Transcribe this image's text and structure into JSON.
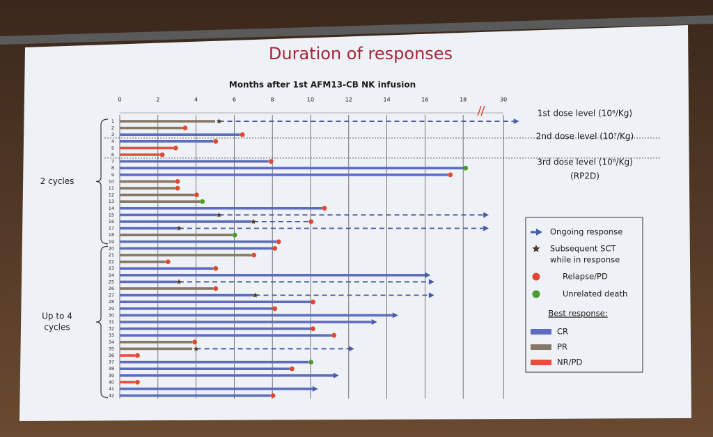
{
  "chart_data": {
    "type": "swimmer",
    "title": "Duration of responses",
    "x_label": "Months after 1st AFM13-CB NK infusion",
    "xlim": [
      0,
      34
    ],
    "axis_break": 18,
    "xticks": [
      0,
      2,
      4,
      6,
      8,
      10,
      12,
      14,
      16,
      18,
      30
    ],
    "categories": [
      "1",
      "2",
      "3",
      "4",
      "5",
      "6",
      "7",
      "8",
      "9",
      "10",
      "11",
      "12",
      "13",
      "14",
      "15",
      "16",
      "17",
      "18",
      "19",
      "20",
      "21",
      "22",
      "23",
      "24",
      "25",
      "26",
      "27",
      "28",
      "29",
      "30",
      "31",
      "32",
      "33",
      "34",
      "35",
      "36",
      "37",
      "38",
      "39",
      "40",
      "41",
      "42"
    ],
    "values": [
      5.0,
      3.3,
      6.3,
      4.9,
      2.8,
      2.1,
      7.8,
      18.0,
      17.2,
      2.9,
      2.9,
      3.9,
      4.2,
      10.6,
      5.1,
      6.9,
      3.0,
      5.9,
      8.2,
      8.0,
      6.9,
      2.4,
      4.9,
      16.0,
      3.0,
      4.9,
      7.0,
      10.0,
      8.0,
      14.3,
      13.2,
      10.0,
      11.1,
      3.8,
      3.8,
      0.8,
      9.9,
      8.9,
      11.2,
      0.8,
      10.1,
      7.9
    ],
    "response": [
      1,
      1,
      0,
      0,
      2,
      2,
      0,
      0,
      0,
      1,
      1,
      1,
      1,
      0,
      0,
      0,
      0,
      1,
      0,
      0,
      1,
      1,
      0,
      0,
      0,
      1,
      0,
      0,
      0,
      0,
      0,
      0,
      0,
      1,
      1,
      2,
      0,
      0,
      0,
      2,
      0,
      0
    ],
    "event": [
      0,
      2,
      2,
      2,
      2,
      2,
      2,
      3,
      2,
      2,
      2,
      2,
      3,
      2,
      0,
      2,
      0,
      3,
      2,
      2,
      2,
      2,
      2,
      0,
      0,
      2,
      0,
      2,
      2,
      0,
      0,
      2,
      2,
      2,
      0,
      2,
      3,
      2,
      0,
      2,
      0,
      2
    ],
    "sct": [
      5.2,
      null,
      null,
      null,
      null,
      null,
      null,
      null,
      null,
      null,
      null,
      null,
      null,
      null,
      5.2,
      7.0,
      3.1,
      null,
      null,
      null,
      null,
      null,
      null,
      null,
      3.1,
      null,
      7.1,
      null,
      null,
      null,
      null,
      null,
      null,
      null,
      4.0,
      null,
      null,
      null,
      null,
      null,
      null,
      null
    ],
    "followup": [
      33,
      null,
      null,
      null,
      null,
      null,
      null,
      null,
      null,
      null,
      null,
      null,
      null,
      null,
      24,
      9.9,
      24,
      null,
      null,
      null,
      null,
      null,
      null,
      null,
      16.2,
      null,
      16.2,
      null,
      null,
      null,
      null,
      null,
      null,
      null,
      12.0,
      null,
      null,
      null,
      null,
      null,
      null,
      null
    ],
    "dose_levels": [
      {
        "label": [
          "1st dose level (10⁶/Kg)"
        ],
        "rows": [
          1,
          3
        ]
      },
      {
        "label": [
          "2nd dose level (10⁷/Kg)"
        ],
        "rows": [
          4,
          6
        ]
      },
      {
        "label": [
          "3rd dose level (10⁸/Kg)",
          "(RP2D)"
        ],
        "rows": [
          7,
          42
        ]
      }
    ],
    "brackets": [
      {
        "label": [
          "2 cycles"
        ],
        "rows": [
          1,
          19
        ]
      },
      {
        "label": [
          "Up to 4",
          "cycles"
        ],
        "rows": [
          20,
          42
        ]
      }
    ],
    "events": [
      {
        "label": [
          "Ongoing response"
        ],
        "color": "#4a5aa8"
      },
      {
        "label": [
          "Subsequent SCT",
          "while in response"
        ],
        "color": "#4a3a28"
      },
      {
        "label": [
          "Relapse/PD"
        ],
        "color": "#e0492f"
      },
      {
        "label": [
          "Unrelated death"
        ],
        "color": "#4f9a2f"
      }
    ],
    "best_response": {
      "title": "Best response:",
      "items": [
        {
          "name": "CR",
          "color": "#5d6cc0"
        },
        {
          "name": "PR",
          "color": "#857866"
        },
        {
          "name": "NR/PD",
          "color": "#e2513b"
        }
      ]
    }
  }
}
